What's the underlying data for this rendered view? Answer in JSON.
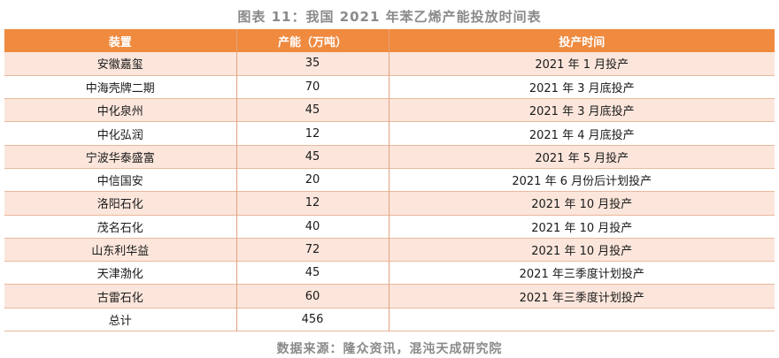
{
  "title": "图表 11：我国 2021 年苯乙烯产能投放时间表",
  "headers": {
    "device": "装置",
    "capacity": "产能（万吨）",
    "time": "投产时间"
  },
  "rows": [
    {
      "device": "安徽嘉玺",
      "capacity": "35",
      "time": "2021 年 1 月投产"
    },
    {
      "device": "中海壳牌二期",
      "capacity": "70",
      "time": "2021 年 3 月底投产"
    },
    {
      "device": "中化泉州",
      "capacity": "45",
      "time": "2021 年 3 月底投产"
    },
    {
      "device": "中化弘润",
      "capacity": "12",
      "time": "2021 年 4 月底投产"
    },
    {
      "device": "宁波华泰盛富",
      "capacity": "45",
      "time": "2021 年 5 月投产"
    },
    {
      "device": "中信国安",
      "capacity": "20",
      "time": "2021 年 6 月份后计划投产"
    },
    {
      "device": "洛阳石化",
      "capacity": "12",
      "time": "2021 年 10 月投产"
    },
    {
      "device": "茂名石化",
      "capacity": "40",
      "time": "2021 年 10 月投产"
    },
    {
      "device": "山东利华益",
      "capacity": "72",
      "time": "2021 年 10 月投产"
    },
    {
      "device": "天津渤化",
      "capacity": "45",
      "time": "2021 年三季度计划投产"
    },
    {
      "device": "古雷石化",
      "capacity": "60",
      "time": "2021 年三季度计划投产"
    }
  ],
  "total": {
    "label": "总计",
    "capacity": "456",
    "time": ""
  },
  "source": "数据来源：隆众资讯，混沌天成研究院"
}
